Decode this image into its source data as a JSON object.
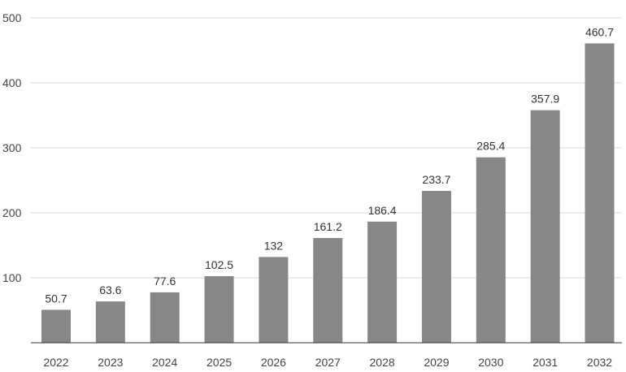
{
  "chart_data": {
    "type": "bar",
    "categories": [
      "2022",
      "2023",
      "2024",
      "2025",
      "2026",
      "2027",
      "2028",
      "2029",
      "2030",
      "2031",
      "2032"
    ],
    "values": [
      50.7,
      63.6,
      77.6,
      102.5,
      132,
      161.2,
      186.4,
      233.7,
      285.4,
      357.9,
      460.7
    ],
    "data_labels": [
      "50.7",
      "63.6",
      "77.6",
      "102.5",
      "132",
      "161.2",
      "186.4",
      "233.7",
      "285.4",
      "357.9",
      "460.7"
    ],
    "yticks": [
      100,
      200,
      300,
      400,
      500
    ],
    "ytick_labels": [
      "100",
      "200",
      "300",
      "400",
      "500"
    ],
    "ylim": [
      0,
      500
    ],
    "title": "",
    "xlabel": "",
    "ylabel": "",
    "grid": true,
    "legend": "none",
    "bar_color": "#878787",
    "grid_color": "#d9d9d9",
    "axis_color": "#333333"
  }
}
